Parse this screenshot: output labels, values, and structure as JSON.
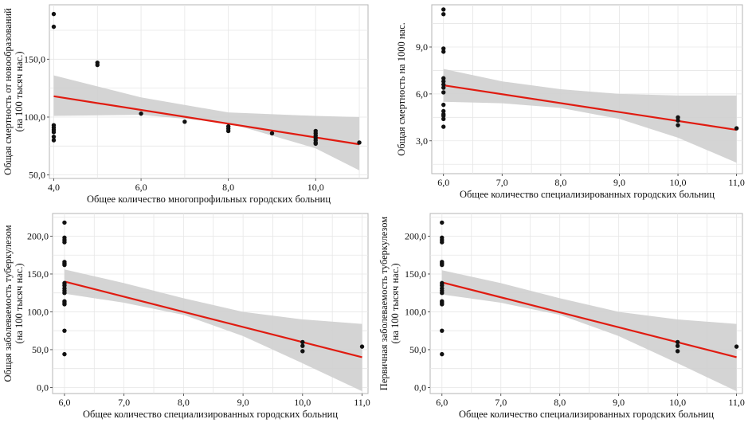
{
  "chart_data": [
    {
      "type": "scatter",
      "xlabel": "Общее количество многопрофильных городских больниц",
      "ylabel": [
        "Общая смертность от новообразований",
        "(на 100 тысяч нас.)"
      ],
      "xlim": [
        3.9,
        11.2
      ],
      "ylim": [
        47,
        197
      ],
      "xticks": [
        4,
        6,
        8,
        10
      ],
      "xtick_labels": [
        "4,0",
        "6,0",
        "8,0",
        "10,0"
      ],
      "yticks": [
        50,
        100,
        150
      ],
      "ytick_labels": [
        "50,0",
        "100,0",
        "150,0"
      ],
      "points": [
        [
          4,
          189
        ],
        [
          4,
          178
        ],
        [
          4,
          93
        ],
        [
          4,
          91
        ],
        [
          4,
          89
        ],
        [
          4,
          87
        ],
        [
          4,
          83
        ],
        [
          4,
          80
        ],
        [
          5,
          147
        ],
        [
          5,
          145
        ],
        [
          6,
          103
        ],
        [
          7,
          96
        ],
        [
          8,
          92
        ],
        [
          8,
          90
        ],
        [
          8,
          88
        ],
        [
          9,
          86
        ],
        [
          10,
          88
        ],
        [
          10,
          86
        ],
        [
          10,
          84
        ],
        [
          10,
          82
        ],
        [
          10,
          80
        ],
        [
          10,
          78
        ],
        [
          10,
          77
        ],
        [
          11,
          78
        ]
      ],
      "fit": [
        [
          4,
          118
        ],
        [
          11,
          76.5
        ]
      ],
      "band_upper": [
        [
          4,
          136
        ],
        [
          6,
          117
        ],
        [
          8,
          104
        ],
        [
          10,
          101
        ],
        [
          11,
          100
        ]
      ],
      "band_lower": [
        [
          4,
          101
        ],
        [
          6,
          102
        ],
        [
          8,
          95
        ],
        [
          10,
          73
        ],
        [
          11,
          54
        ]
      ],
      "grid": true
    },
    {
      "type": "scatter",
      "xlabel": "Общее количество специализированных городских больниц",
      "ylabel": [
        "Общая смертность на 1000 нас."
      ],
      "xlim": [
        5.8,
        11.1
      ],
      "ylim": [
        0.9,
        11.7
      ],
      "xticks": [
        6,
        7,
        8,
        9,
        10,
        11
      ],
      "xtick_labels": [
        "6,0",
        "7,0",
        "8,0",
        "9,0",
        "10,0",
        "11,0"
      ],
      "yticks": [
        3,
        6,
        9
      ],
      "ytick_labels": [
        "3,0",
        "6,0",
        "9,0"
      ],
      "points": [
        [
          6,
          11.4
        ],
        [
          6,
          11.1
        ],
        [
          6,
          8.9
        ],
        [
          6,
          8.7
        ],
        [
          6,
          7.0
        ],
        [
          6,
          6.8
        ],
        [
          6,
          6.6
        ],
        [
          6,
          6.4
        ],
        [
          6,
          6.1
        ],
        [
          6,
          5.3
        ],
        [
          6,
          4.9
        ],
        [
          6,
          4.7
        ],
        [
          6,
          4.6
        ],
        [
          6,
          4.4
        ],
        [
          6,
          3.9
        ],
        [
          10,
          4.5
        ],
        [
          10,
          4.3
        ],
        [
          10,
          4.0
        ],
        [
          11,
          3.8
        ]
      ],
      "fit": [
        [
          6,
          6.55
        ],
        [
          11,
          3.7
        ]
      ],
      "band_upper": [
        [
          6,
          7.6
        ],
        [
          7,
          6.8
        ],
        [
          8,
          6.3
        ],
        [
          9,
          6.0
        ],
        [
          10,
          5.9
        ],
        [
          11,
          5.9
        ]
      ],
      "band_lower": [
        [
          6,
          5.5
        ],
        [
          7,
          5.4
        ],
        [
          8,
          5.1
        ],
        [
          9,
          4.4
        ],
        [
          10,
          3.2
        ],
        [
          11,
          1.6
        ]
      ],
      "grid": true
    },
    {
      "type": "scatter",
      "xlabel": "Общее количество специализированных городских больниц",
      "ylabel": [
        "Общая заболеваемость туберкулезом",
        "(на 100 тысяч нас.)"
      ],
      "xlim": [
        5.8,
        11.1
      ],
      "ylim": [
        -8,
        230
      ],
      "xticks": [
        6,
        7,
        8,
        9,
        10,
        11
      ],
      "xtick_labels": [
        "6,0",
        "7,0",
        "8,0",
        "9,0",
        "10,0",
        "11,0"
      ],
      "yticks": [
        0,
        50,
        100,
        150,
        200
      ],
      "ytick_labels": [
        "0,0",
        "50,0",
        "100,0",
        "150,0",
        "200,0"
      ],
      "points": [
        [
          6,
          218
        ],
        [
          6,
          198
        ],
        [
          6,
          195
        ],
        [
          6,
          192
        ],
        [
          6,
          166
        ],
        [
          6,
          164
        ],
        [
          6,
          162
        ],
        [
          6,
          138
        ],
        [
          6,
          135
        ],
        [
          6,
          131
        ],
        [
          6,
          128
        ],
        [
          6,
          125
        ],
        [
          6,
          114
        ],
        [
          6,
          112
        ],
        [
          6,
          110
        ],
        [
          6,
          75
        ],
        [
          6,
          44
        ],
        [
          10,
          60
        ],
        [
          10,
          55
        ],
        [
          10,
          48
        ],
        [
          11,
          54
        ]
      ],
      "fit": [
        [
          6,
          140
        ],
        [
          11,
          40
        ]
      ],
      "band_upper": [
        [
          6,
          156
        ],
        [
          7,
          138
        ],
        [
          8,
          118
        ],
        [
          9,
          100
        ],
        [
          10,
          90
        ],
        [
          11,
          84
        ]
      ],
      "band_lower": [
        [
          6,
          124
        ],
        [
          7,
          112
        ],
        [
          8,
          96
        ],
        [
          9,
          68
        ],
        [
          10,
          32
        ],
        [
          11,
          -5
        ]
      ],
      "grid": true
    },
    {
      "type": "scatter",
      "xlabel": "Общее количество специализированных городских больниц",
      "ylabel": [
        "Первичная заболеваемость туберкулезом",
        "(на 100 тысяч нас.)"
      ],
      "xlim": [
        5.8,
        11.1
      ],
      "ylim": [
        -8,
        230
      ],
      "xticks": [
        6,
        7,
        8,
        9,
        10,
        11
      ],
      "xtick_labels": [
        "6,0",
        "7,0",
        "8,0",
        "9,0",
        "10,0",
        "11,0"
      ],
      "yticks": [
        0,
        50,
        100,
        150,
        200
      ],
      "ytick_labels": [
        "0,0",
        "50,0",
        "100,0",
        "150,0",
        "200,0"
      ],
      "points": [
        [
          6,
          218
        ],
        [
          6,
          198
        ],
        [
          6,
          195
        ],
        [
          6,
          192
        ],
        [
          6,
          166
        ],
        [
          6,
          164
        ],
        [
          6,
          162
        ],
        [
          6,
          138
        ],
        [
          6,
          135
        ],
        [
          6,
          131
        ],
        [
          6,
          128
        ],
        [
          6,
          125
        ],
        [
          6,
          114
        ],
        [
          6,
          112
        ],
        [
          6,
          110
        ],
        [
          6,
          75
        ],
        [
          6,
          44
        ],
        [
          10,
          60
        ],
        [
          10,
          55
        ],
        [
          10,
          48
        ],
        [
          11,
          54
        ]
      ],
      "fit": [
        [
          6,
          139
        ],
        [
          11,
          40
        ]
      ],
      "band_upper": [
        [
          6,
          155
        ],
        [
          7,
          138
        ],
        [
          8,
          118
        ],
        [
          9,
          100
        ],
        [
          10,
          90
        ],
        [
          11,
          84
        ]
      ],
      "band_lower": [
        [
          6,
          123
        ],
        [
          7,
          112
        ],
        [
          8,
          96
        ],
        [
          9,
          68
        ],
        [
          10,
          32
        ],
        [
          11,
          -5
        ]
      ],
      "grid": true
    }
  ]
}
